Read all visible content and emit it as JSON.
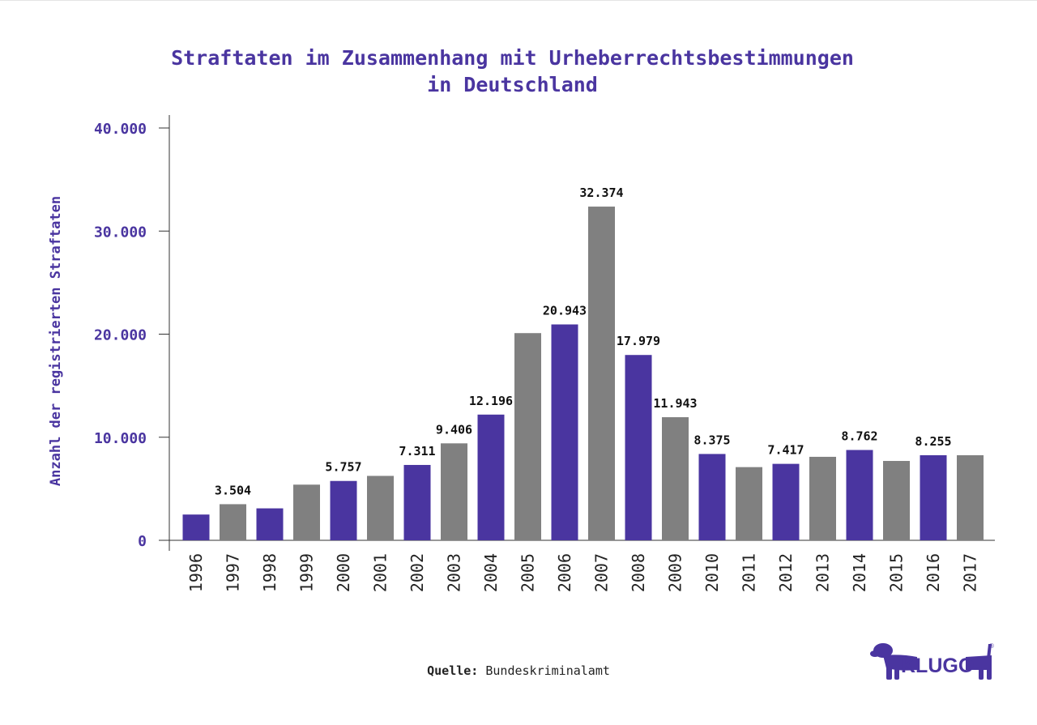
{
  "title_line1": "Straftaten im Zusammenhang mit Urheberrechtsbestimmungen",
  "title_line2": "in Deutschland",
  "source": {
    "label": "Quelle:",
    "value": "Bundeskriminalamt"
  },
  "logo": {
    "text": "KLUGO",
    "mark": "®",
    "icon": "dachshund-icon"
  },
  "colors": {
    "accent": "#4a35a0",
    "gray": "#808080",
    "axis": "#333333",
    "title": "#4a35a0"
  },
  "chart_data": {
    "type": "bar",
    "title": "Straftaten im Zusammenhang mit Urheberrechtsbestimmungen in Deutschland",
    "xlabel": "",
    "ylabel": "Anzahl der registrierten Straftaten",
    "ylim": [
      0,
      40000
    ],
    "yticks": [
      0,
      10000,
      20000,
      30000,
      40000
    ],
    "ytick_labels": [
      "0",
      "10.000",
      "20.000",
      "30.000",
      "40.000"
    ],
    "categories": [
      "1996",
      "1997",
      "1998",
      "1999",
      "2000",
      "2001",
      "2002",
      "2003",
      "2004",
      "2005",
      "2006",
      "2007",
      "2008",
      "2009",
      "2010",
      "2011",
      "2012",
      "2013",
      "2014",
      "2015",
      "2016",
      "2017"
    ],
    "values": [
      2500,
      3504,
      3100,
      5400,
      5757,
      6250,
      7311,
      9406,
      12196,
      20100,
      20943,
      32374,
      17979,
      11943,
      8375,
      7100,
      7417,
      8100,
      8762,
      7700,
      8255,
      8255
    ],
    "data_labels": [
      "",
      "3.504",
      "",
      "",
      "5.757",
      "",
      "7.311",
      "9.406",
      "12.196",
      "",
      "20.943",
      "32.374",
      "17.979",
      "11.943",
      "8.375",
      "",
      "7.417",
      "",
      "8.762",
      "",
      "8.255",
      ""
    ],
    "bar_colors": [
      "#4a35a0",
      "#808080",
      "#4a35a0",
      "#808080",
      "#4a35a0",
      "#808080",
      "#4a35a0",
      "#808080",
      "#4a35a0",
      "#808080",
      "#4a35a0",
      "#808080",
      "#4a35a0",
      "#808080",
      "#4a35a0",
      "#808080",
      "#4a35a0",
      "#808080",
      "#4a35a0",
      "#808080",
      "#4a35a0",
      "#808080"
    ],
    "grid": false,
    "legend": "none"
  }
}
